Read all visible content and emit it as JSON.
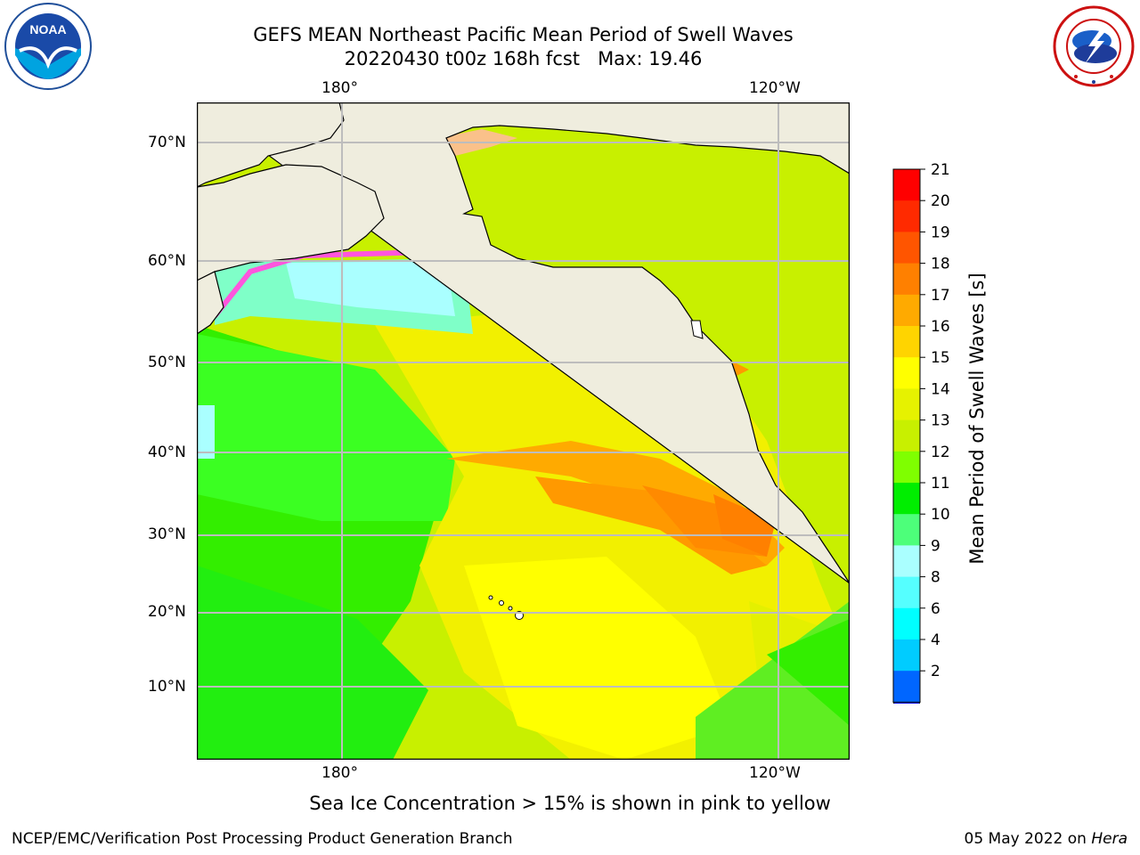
{
  "header": {
    "title_line1": "GEFS MEAN Northeast Pacific Mean Period of Swell Waves",
    "title_line2": "20220430 t00z 168h fcst   Max: 19.46"
  },
  "logos": {
    "left": "noaa-logo",
    "right": "national-weather-service-logo",
    "left_text": "NOAA"
  },
  "map": {
    "lon_labels_top": [
      "180°",
      "120°W"
    ],
    "lon_labels_bottom": [
      "180°",
      "120°W"
    ],
    "lat_labels": [
      "70°N",
      "60°N",
      "50°N",
      "40°N",
      "30°N",
      "20°N",
      "10°N"
    ],
    "land_color": "#efedde",
    "grid_color": "#bdbdbd"
  },
  "colorbar": {
    "title": "Mean Period of Swell Waves [s]",
    "ticks": [
      "21",
      "20",
      "19",
      "18",
      "17",
      "16",
      "15",
      "14",
      "13",
      "12",
      "11",
      "10",
      "9",
      "8",
      "6",
      "4",
      "2"
    ],
    "colors": [
      "#ff0000",
      "#ff2a00",
      "#ff5500",
      "#ff8000",
      "#ffaa00",
      "#ffd400",
      "#ffff00",
      "#e6f200",
      "#c8f000",
      "#7fff00",
      "#00ee00",
      "#4dff7a",
      "#aaffff",
      "#55ffff",
      "#00ffff",
      "#00ccff",
      "#0066ff"
    ],
    "extend_color": "#0000ff"
  },
  "caption": "Sea Ice Concentration > 15% is shown in pink to yellow",
  "footer": {
    "left": "NCEP/EMC/Verification Post Processing Product Generation Branch",
    "right_prefix": "05 May 2022 on ",
    "right_host": "Hera"
  }
}
